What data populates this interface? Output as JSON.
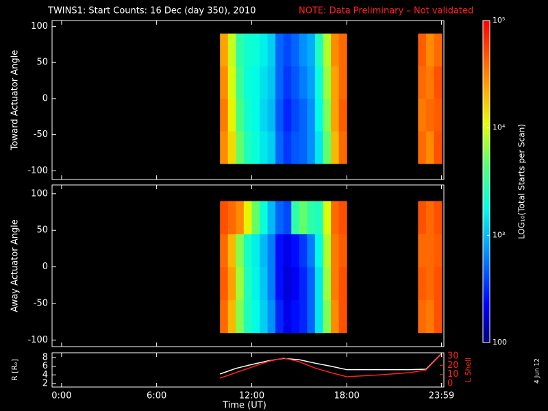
{
  "chart_data": [
    {
      "type": "heatmap",
      "title": "TWINS1: Start Counts: 16 Dec (day 350), 2010",
      "note": "NOTE: Data Preliminary – Not validated",
      "note_color": "#ff2020",
      "ylabel": "Toward Actuator Angle",
      "xlim": [
        -0.6,
        24.13
      ],
      "ylim": [
        -112,
        108
      ],
      "yticks": [
        -100,
        -50,
        0,
        50,
        100
      ],
      "x": [
        10,
        10.5,
        11,
        11.5,
        12,
        12.5,
        13,
        13.5,
        14,
        14.5,
        15,
        15.5,
        16,
        16.5,
        17,
        17.5,
        22.5,
        23,
        23.5
      ],
      "bin_width": 0.5,
      "y_edges": [
        -90,
        -45,
        0,
        45,
        90
      ],
      "z": [
        [
          30000,
          15000,
          5000,
          2500,
          2000,
          1500,
          1200,
          500,
          350,
          450,
          500,
          700,
          1500,
          5000,
          20000,
          40000,
          40000,
          30000,
          50000
        ],
        [
          35000,
          12000,
          4000,
          2200,
          1800,
          1300,
          1000,
          450,
          300,
          400,
          500,
          700,
          1800,
          6000,
          25000,
          45000,
          35000,
          40000,
          45000
        ],
        [
          30000,
          10000,
          3500,
          2000,
          1800,
          1400,
          1100,
          500,
          350,
          450,
          600,
          800,
          2000,
          7000,
          25000,
          40000,
          40000,
          35000,
          50000
        ],
        [
          25000,
          9000,
          3000,
          2200,
          2000,
          1600,
          1200,
          500,
          400,
          500,
          700,
          900,
          2500,
          8000,
          30000,
          40000,
          45000,
          30000,
          40000
        ]
      ]
    },
    {
      "type": "heatmap",
      "ylabel": "Away Actuator Angle",
      "xlim": [
        -0.6,
        24.13
      ],
      "ylim": [
        -109,
        112
      ],
      "yticks": [
        -100,
        -50,
        0,
        50,
        100
      ],
      "x": [
        10,
        10.5,
        11,
        11.5,
        12,
        12.5,
        13,
        13.5,
        14,
        14.5,
        15,
        15.5,
        16,
        16.5,
        17,
        17.5,
        22.5,
        23,
        23.5
      ],
      "bin_width": 0.5,
      "y_edges": [
        -90,
        -45,
        0,
        45,
        90
      ],
      "z": [
        [
          40000,
          20000,
          6000,
          2500,
          1800,
          1200,
          700,
          300,
          200,
          250,
          300,
          500,
          1500,
          6000,
          30000,
          50000,
          40000,
          35000,
          50000
        ],
        [
          45000,
          25000,
          7000,
          2500,
          1700,
          1100,
          600,
          250,
          180,
          220,
          300,
          500,
          1500,
          7000,
          35000,
          50000,
          45000,
          40000,
          50000
        ],
        [
          40000,
          20000,
          6000,
          2300,
          1600,
          1000,
          600,
          250,
          200,
          250,
          350,
          600,
          1800,
          8000,
          35000,
          45000,
          40000,
          40000,
          45000
        ],
        [
          50000,
          40000,
          30000,
          12000,
          5000,
          2000,
          1000,
          500,
          400,
          3000,
          5000,
          3000,
          2500,
          10000,
          40000,
          50000,
          50000,
          40000,
          50000
        ]
      ]
    },
    {
      "type": "line",
      "ylabel": "R [Rₑ]",
      "y2label": "L Shell",
      "y2color": "#ff2020",
      "xlabel": "Time (UT)",
      "xlim": [
        -0.6,
        24.13
      ],
      "xticks": [
        {
          "value": 0,
          "label": "0:00"
        },
        {
          "value": 6,
          "label": "6:00"
        },
        {
          "value": 12,
          "label": "12:00"
        },
        {
          "value": 18,
          "label": "18:00"
        },
        {
          "value": 23.98,
          "label": "23:59"
        }
      ],
      "ylim": [
        1.2,
        9.1
      ],
      "yticks": [
        2,
        4,
        6,
        8
      ],
      "y2lim": [
        -3.75,
        33.75
      ],
      "y2ticks": [
        0,
        10,
        20,
        30
      ],
      "x": [
        10,
        11,
        12,
        13,
        14,
        15,
        16,
        17,
        18,
        20,
        22,
        23,
        24
      ],
      "series": [
        {
          "color": "#ffffff",
          "values": [
            4.2,
            5.5,
            6.4,
            7.2,
            7.8,
            7.5,
            6.7,
            6.0,
            5.2,
            5.2,
            5.2,
            5.3,
            9.0
          ]
        },
        {
          "color": "#ff2020",
          "axis": "y2",
          "values": [
            6,
            12,
            18,
            24,
            28,
            24,
            17,
            12,
            7.5,
            9.5,
            12,
            15,
            33
          ]
        }
      ]
    },
    {
      "type": "colorbar",
      "label": "LOG₁₀(Total Starts per Scan)",
      "log": true,
      "zlim": [
        100,
        100000
      ],
      "zticks": [
        {
          "value": 100000,
          "label": "10⁵"
        },
        {
          "value": 10000,
          "label": "10⁴"
        },
        {
          "value": 1000,
          "label": "10³"
        },
        100
      ]
    }
  ],
  "date_stamp": "4 Jun 12"
}
